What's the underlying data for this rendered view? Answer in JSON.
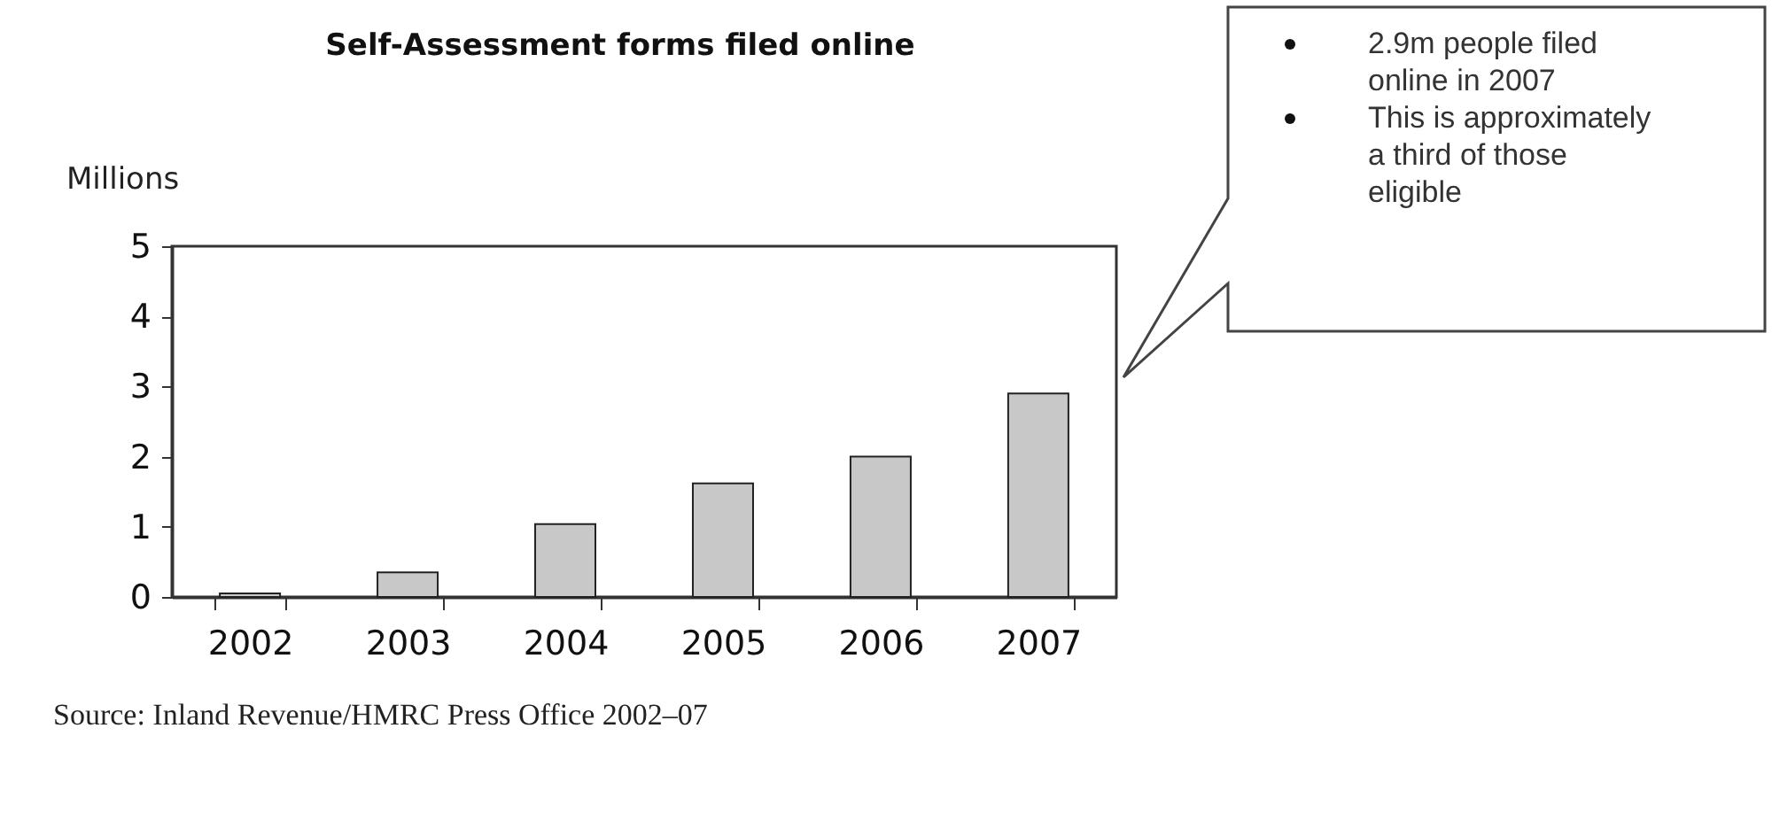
{
  "chart_data": {
    "type": "bar",
    "title": "Self-Assessment forms filed online",
    "ylabel": "Millions",
    "categories": [
      "2002",
      "2003",
      "2004",
      "2005",
      "2006",
      "2007"
    ],
    "values": [
      0.05,
      0.35,
      1.04,
      1.62,
      2.0,
      2.9
    ],
    "color": "#c8c8c8",
    "ylim": [
      0,
      5
    ],
    "yticks": [
      0,
      1,
      2,
      3,
      4,
      5
    ],
    "grid": false,
    "annotations": [
      "2.9m people filed online in 2007",
      "This is approximately a third of those eligible",
      "Source: Inland Revenue/HMRC Press Office 2002–07"
    ]
  }
}
